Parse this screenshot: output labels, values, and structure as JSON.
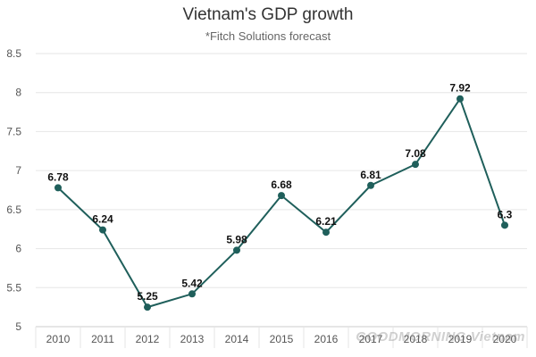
{
  "chart_data": {
    "type": "line",
    "title": "Vietnam's GDP growth",
    "subtitle": "*Fitch Solutions forecast",
    "xlabel": "",
    "ylabel": "",
    "categories": [
      "2010",
      "2011",
      "2012",
      "2013",
      "2014",
      "2015",
      "2016",
      "2017",
      "2018",
      "2019",
      "2020"
    ],
    "series": [
      {
        "values": [
          6.78,
          6.24,
          5.25,
          5.42,
          5.98,
          6.68,
          6.21,
          6.81,
          7.08,
          7.92,
          6.3
        ],
        "data_labels": [
          "6.78",
          "6.24",
          "5.25",
          "5.42",
          "5.98",
          "6.68",
          "6.21",
          "6.81",
          "7.08",
          "7.92",
          "6.3"
        ]
      }
    ],
    "ylim": [
      5,
      8.5
    ],
    "yticks": [
      "5",
      "5.5",
      "6",
      "6.5",
      "7",
      "7.5",
      "8",
      "8.5"
    ],
    "grid": true,
    "legend": "none",
    "colors": {
      "line": "#1f5f5b",
      "marker": "#1f5f5b",
      "grid": "#e6e6e6",
      "axis": "#cccccc"
    }
  },
  "watermark": "GOODMORNING Vietnam"
}
